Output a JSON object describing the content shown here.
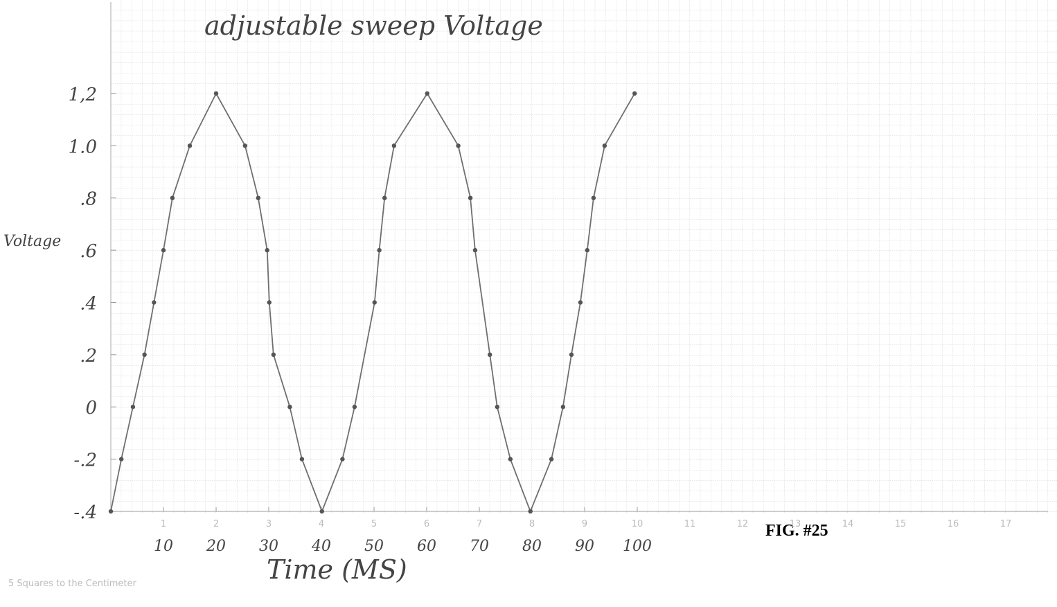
{
  "chart_data": {
    "type": "line",
    "title": "adjustable sweep Voltage",
    "x_label": "Time (MS)",
    "y_label": "Voltage",
    "figure_label": "FIG. #25",
    "footer": "5 Squares to the Centimeter",
    "x": [
      0,
      2,
      4.2,
      6.4,
      8.2,
      10,
      11.7,
      15,
      20,
      25.5,
      28,
      29.7,
      30.1,
      30.9,
      34,
      36.3,
      40.1,
      44,
      46.3,
      50.1,
      51,
      52,
      53.8,
      60.1,
      66,
      68.3,
      69.2,
      72,
      73.4,
      75.9,
      79.7,
      83.7,
      85.9,
      87.5,
      89.2,
      90.5,
      91.7,
      93.8,
      99.5
    ],
    "series": [
      {
        "name": "Voltage",
        "color": "#6f6f6f",
        "values": [
          -0.4,
          -0.2,
          0,
          0.2,
          0.4,
          0.6,
          0.8,
          1.0,
          1.2,
          1.0,
          0.8,
          0.6,
          0.4,
          0.2,
          0,
          -0.2,
          -0.4,
          -0.2,
          0,
          0.4,
          0.6,
          0.8,
          1.0,
          1.2,
          1.0,
          0.8,
          0.6,
          0.2,
          0,
          -0.2,
          -0.4,
          -0.2,
          0,
          0.2,
          0.4,
          0.6,
          0.8,
          1.0,
          1.2
        ]
      }
    ],
    "xlim": [
      0,
      178
    ],
    "ylim": [
      -0.4,
      1.55
    ],
    "xticks": [
      10,
      20,
      30,
      40,
      50,
      60,
      70,
      80,
      90,
      100
    ],
    "paper_xticks": [
      1,
      2,
      3,
      4,
      5,
      6,
      7,
      8,
      9,
      10,
      11,
      12,
      13,
      14,
      15,
      16,
      17
    ],
    "yticks": [
      {
        "value": -0.4,
        "label": "-.4"
      },
      {
        "value": -0.2,
        "label": "-.2"
      },
      0,
      {
        "value": 0.2,
        "label": ".2"
      },
      {
        "value": 0.4,
        "label": ".4"
      },
      {
        "value": 0.6,
        "label": ".6"
      },
      {
        "value": 0.8,
        "label": ".8"
      },
      {
        "value": 1.0,
        "label": "1.0"
      },
      {
        "value": 1.2,
        "label": "1,2"
      }
    ],
    "grid": true
  }
}
